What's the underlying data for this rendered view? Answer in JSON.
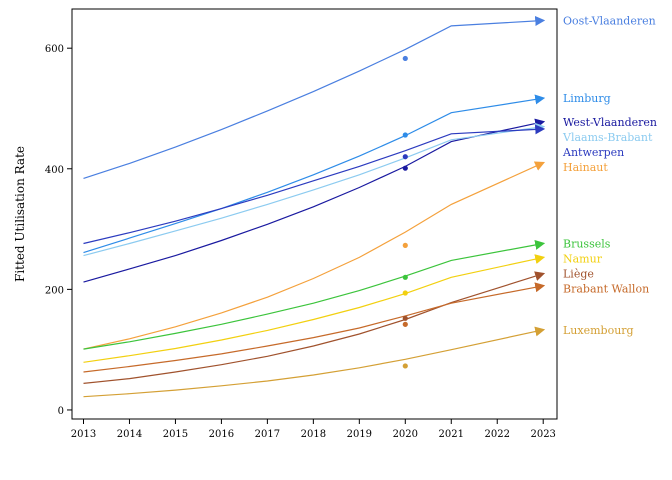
{
  "chart_data": {
    "type": "line",
    "title": "",
    "xlabel": "",
    "ylabel": "Fitted Utilisation Rate",
    "x": [
      2013,
      2014,
      2015,
      2016,
      2017,
      2018,
      2019,
      2020,
      2021,
      2022,
      2023
    ],
    "x_tick_labels": [
      "2013",
      "2014",
      "2015",
      "2016",
      "2017",
      "2018",
      "2019",
      "2020",
      "2021",
      "2022",
      "2023"
    ],
    "y_ticks": [
      0,
      200,
      400,
      600
    ],
    "y_tick_labels": [
      "0",
      "200",
      "400",
      "600"
    ],
    "xlim": [
      2012.75,
      2023.3
    ],
    "ylim": [
      -15,
      665
    ],
    "grid": false,
    "legend": "labels at line ends (right)",
    "series": [
      {
        "name": "Oost-Vlaanderen",
        "color": "#4a7fe0",
        "line": [
          [
            2013,
            384
          ],
          [
            2014,
            409
          ],
          [
            2015,
            436
          ],
          [
            2016,
            465
          ],
          [
            2017,
            496
          ],
          [
            2018,
            528
          ],
          [
            2019,
            562
          ],
          [
            2020,
            598
          ],
          [
            2021,
            637
          ],
          [
            2023,
            646
          ]
        ],
        "point": [
          2020,
          583
        ]
      },
      {
        "name": "Limburg",
        "color": "#2e8ce8",
        "line": [
          [
            2013,
            261
          ],
          [
            2014,
            285
          ],
          [
            2015,
            309
          ],
          [
            2016,
            334
          ],
          [
            2017,
            361
          ],
          [
            2018,
            390
          ],
          [
            2019,
            421
          ],
          [
            2020,
            455
          ],
          [
            2021,
            493
          ],
          [
            2023,
            517
          ]
        ],
        "point": [
          2020,
          456
        ]
      },
      {
        "name": "West-Vlaanderen",
        "color": "#1a1aa0",
        "line": [
          [
            2013,
            212
          ],
          [
            2014,
            234
          ],
          [
            2015,
            256
          ],
          [
            2016,
            281
          ],
          [
            2017,
            308
          ],
          [
            2018,
            337
          ],
          [
            2019,
            369
          ],
          [
            2020,
            404
          ],
          [
            2021,
            445
          ],
          [
            2023,
            478
          ]
        ],
        "point": [
          2020,
          401
        ]
      },
      {
        "name": "Vlaams-Brabant",
        "color": "#8ccbf0",
        "line": [
          [
            2013,
            256
          ],
          [
            2014,
            276
          ],
          [
            2015,
            297
          ],
          [
            2016,
            318
          ],
          [
            2017,
            341
          ],
          [
            2018,
            365
          ],
          [
            2019,
            390
          ],
          [
            2020,
            418
          ],
          [
            2021,
            448
          ],
          [
            2023,
            470
          ]
        ],
        "point": null
      },
      {
        "name": "Antwerpen",
        "color": "#2c3bbf",
        "line": [
          [
            2013,
            276
          ],
          [
            2014,
            294
          ],
          [
            2015,
            313
          ],
          [
            2016,
            334
          ],
          [
            2017,
            356
          ],
          [
            2018,
            380
          ],
          [
            2019,
            404
          ],
          [
            2020,
            430
          ],
          [
            2021,
            458
          ],
          [
            2023,
            466
          ]
        ],
        "point": [
          2020,
          420
        ]
      },
      {
        "name": "Hainaut",
        "color": "#f4a13c",
        "line": [
          [
            2013,
            101
          ],
          [
            2014,
            118
          ],
          [
            2015,
            138
          ],
          [
            2016,
            161
          ],
          [
            2017,
            187
          ],
          [
            2018,
            218
          ],
          [
            2019,
            253
          ],
          [
            2020,
            295
          ],
          [
            2021,
            341
          ],
          [
            2023,
            410
          ]
        ],
        "point": [
          2020,
          273
        ]
      },
      {
        "name": "Brussels",
        "color": "#3cc43c",
        "line": [
          [
            2013,
            101
          ],
          [
            2014,
            113
          ],
          [
            2015,
            127
          ],
          [
            2016,
            142
          ],
          [
            2017,
            159
          ],
          [
            2018,
            177
          ],
          [
            2019,
            198
          ],
          [
            2020,
            222
          ],
          [
            2021,
            248
          ],
          [
            2023,
            276
          ]
        ],
        "point": [
          2020,
          220
        ]
      },
      {
        "name": "Namur",
        "color": "#f2d010",
        "line": [
          [
            2013,
            79
          ],
          [
            2014,
            90
          ],
          [
            2015,
            102
          ],
          [
            2016,
            116
          ],
          [
            2017,
            132
          ],
          [
            2018,
            150
          ],
          [
            2019,
            170
          ],
          [
            2020,
            193
          ],
          [
            2021,
            220
          ],
          [
            2023,
            253
          ]
        ],
        "point": [
          2020,
          194
        ]
      },
      {
        "name": "Liège",
        "color": "#a0522d",
        "line": [
          [
            2013,
            44
          ],
          [
            2014,
            52
          ],
          [
            2015,
            63
          ],
          [
            2016,
            75
          ],
          [
            2017,
            89
          ],
          [
            2018,
            106
          ],
          [
            2019,
            126
          ],
          [
            2020,
            150
          ],
          [
            2021,
            178
          ],
          [
            2023,
            226
          ]
        ],
        "point": [
          2020,
          152
        ]
      },
      {
        "name": "Brabant Wallon",
        "color": "#c66a2a",
        "line": [
          [
            2013,
            63
          ],
          [
            2014,
            72
          ],
          [
            2015,
            82
          ],
          [
            2016,
            93
          ],
          [
            2017,
            106
          ],
          [
            2018,
            120
          ],
          [
            2019,
            136
          ],
          [
            2020,
            156
          ],
          [
            2021,
            177
          ],
          [
            2023,
            206
          ]
        ],
        "point": [
          2020,
          142
        ]
      },
      {
        "name": "Luxembourg",
        "color": "#d4a035",
        "line": [
          [
            2013,
            22
          ],
          [
            2014,
            27
          ],
          [
            2015,
            33
          ],
          [
            2016,
            40
          ],
          [
            2017,
            48
          ],
          [
            2018,
            58
          ],
          [
            2019,
            70
          ],
          [
            2020,
            84
          ],
          [
            2021,
            100
          ],
          [
            2023,
            133
          ]
        ],
        "point": [
          2020,
          73
        ]
      }
    ]
  }
}
